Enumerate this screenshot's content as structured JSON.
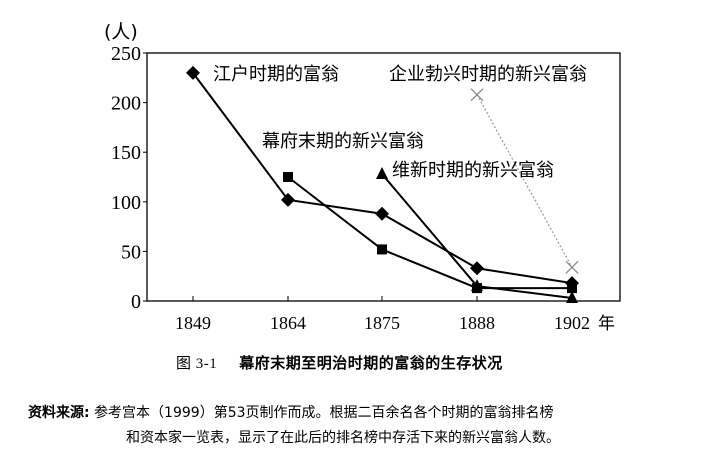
{
  "chart_data": {
    "type": "line",
    "title": "幕府末期至明治时期的富翁的生存状况",
    "figure_number": "图 3-1",
    "ylabel": "(人)",
    "xlabel": "年",
    "ylim": [
      0,
      250
    ],
    "yticks": [
      0,
      50,
      100,
      150,
      200,
      250
    ],
    "categories": [
      "1849",
      "1864",
      "1875",
      "1888",
      "1902"
    ],
    "grid": false,
    "legend_position": "inline labels",
    "series": [
      {
        "name": "江户时期的富翁",
        "marker": "diamond",
        "values": [
          230,
          102,
          88,
          33,
          18
        ]
      },
      {
        "name": "幕府末期的新兴富翁",
        "marker": "square",
        "values": [
          null,
          125,
          52,
          13,
          13
        ]
      },
      {
        "name": "维新时期的新兴富翁",
        "marker": "triangle",
        "values": [
          null,
          null,
          128,
          15,
          3
        ]
      },
      {
        "name": "企业勃兴时期的新兴富翁",
        "marker": "x",
        "values": [
          null,
          null,
          null,
          208,
          34
        ]
      }
    ]
  },
  "labels": {
    "y_unit": "(人)",
    "x_unit": "年",
    "series_edo": "江户时期的富翁",
    "series_bakumatsu": "幕府末期的新兴富翁",
    "series_ishin": "维新时期的新兴富翁",
    "series_kigyo": "企业勃兴时期的新兴富翁"
  },
  "caption": {
    "number": "图 3-1",
    "title": "幕府末期至明治时期的富翁的生存状况"
  },
  "source": {
    "label": "资料来源:",
    "line1": "参考宫本（1999）第53页制作而成。根据二百余名各个时期的富翁排名榜",
    "line2": "和资本家一览表，显示了在此后的排名榜中存活下来的新兴富翁人数。"
  }
}
